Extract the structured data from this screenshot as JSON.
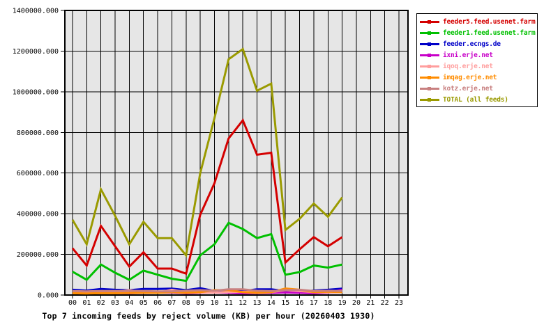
{
  "chart_data": {
    "type": "line",
    "title": "Top 7 incoming feeds by reject volume (KB) per hour (20260403 1930)",
    "xlabel": "",
    "ylabel": "",
    "ylim": [
      0,
      1400000
    ],
    "grid": true,
    "legend_position": "top-right",
    "plot_bg_color": "#e6e6e6",
    "grid_color": "#000000",
    "categories": [
      "00",
      "01",
      "02",
      "03",
      "04",
      "05",
      "06",
      "07",
      "08",
      "09",
      "10",
      "11",
      "12",
      "13",
      "14",
      "15",
      "16",
      "17",
      "18",
      "19",
      "20",
      "21",
      "22",
      "23"
    ],
    "y_ticks": [
      0,
      200000,
      400000,
      600000,
      800000,
      1000000,
      1200000,
      1400000
    ],
    "y_tick_labels": [
      "0.000",
      "200000.000",
      "400000.000",
      "600000.000",
      "800000.000",
      "1000000.000",
      "1200000.000",
      "1400000.000"
    ],
    "data_hours": [
      "00",
      "01",
      "02",
      "03",
      "04",
      "05",
      "06",
      "07",
      "08",
      "09",
      "10",
      "11",
      "12",
      "13",
      "14",
      "15",
      "16",
      "17",
      "18",
      "19"
    ],
    "series": [
      {
        "name": "feeder5.feed.usenet.farm",
        "color": "#d40000",
        "values": [
          230000,
          145000,
          340000,
          240000,
          140000,
          210000,
          130000,
          130000,
          105000,
          395000,
          550000,
          770000,
          860000,
          690000,
          700000,
          160000,
          225000,
          285000,
          240000,
          285000
        ]
      },
      {
        "name": "feeder1.feed.usenet.farm",
        "color": "#00c000",
        "values": [
          115000,
          75000,
          150000,
          110000,
          75000,
          120000,
          100000,
          80000,
          70000,
          195000,
          250000,
          355000,
          325000,
          280000,
          300000,
          100000,
          113000,
          145000,
          135000,
          150000
        ]
      },
      {
        "name": "feeder.ecngs.de",
        "color": "#0000c8",
        "values": [
          26000,
          22000,
          30000,
          26000,
          24000,
          30000,
          30000,
          32000,
          24000,
          34000,
          20000,
          16000,
          20000,
          28000,
          28000,
          20000,
          16000,
          22000,
          26000,
          32000
        ]
      },
      {
        "name": "ixni.erje.net",
        "color": "#c800c8",
        "values": [
          11000,
          9000,
          11000,
          10000,
          9000,
          11000,
          12000,
          13000,
          9000,
          11000,
          13000,
          11000,
          9000,
          10000,
          11000,
          13000,
          11000,
          9000,
          11000,
          26000
        ]
      },
      {
        "name": "iqoq.erje.net",
        "color": "#ff9e9e",
        "values": [
          14000,
          12000,
          14000,
          16000,
          24000,
          14000,
          12000,
          26000,
          14000,
          12000,
          12000,
          14000,
          16000,
          14000,
          14000,
          24000,
          20000,
          14000,
          12000,
          14000
        ]
      },
      {
        "name": "imqag.erje.net",
        "color": "#ff8c00",
        "values": [
          9000,
          8000,
          9000,
          9000,
          10000,
          11000,
          11000,
          14000,
          11000,
          14000,
          24000,
          24000,
          14000,
          11000,
          14000,
          32000,
          26000,
          14000,
          16000,
          14000
        ]
      },
      {
        "name": "kotz.erje.net",
        "color": "#c88080",
        "values": [
          20000,
          18000,
          20000,
          20000,
          21000,
          20000,
          18000,
          18000,
          21000,
          24000,
          21000,
          28000,
          28000,
          21000,
          20000,
          24000,
          26000,
          20000,
          21000,
          20000
        ]
      },
      {
        "name": "TOTAL (all feeds)",
        "color": "#9a9a00",
        "values": [
          370000,
          250000,
          520000,
          390000,
          250000,
          360000,
          280000,
          280000,
          195000,
          600000,
          870000,
          1160000,
          1210000,
          1005000,
          1040000,
          320000,
          375000,
          450000,
          385000,
          480000
        ]
      }
    ]
  }
}
